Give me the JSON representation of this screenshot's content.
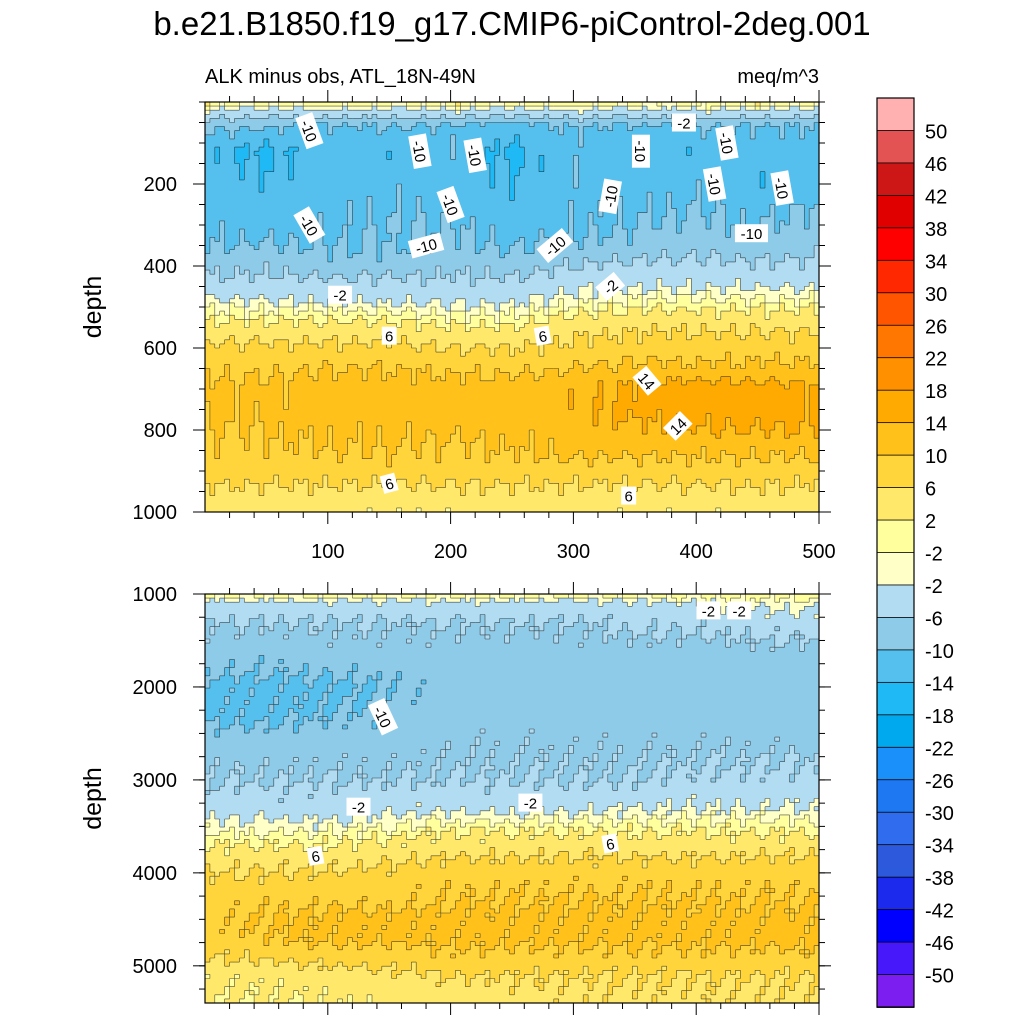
{
  "title": "b.e21.B1850.f19_g17.CMIP6-piControl-2deg.001",
  "chart_data": [
    {
      "type": "heatmap",
      "panel": "upper",
      "subtitle_left": "ALK minus obs, ATL_18N-49N",
      "subtitle_right": "meq/m^3",
      "xlabel": "",
      "ylabel": "depth",
      "xlim": [
        0,
        500
      ],
      "ylim": [
        1000,
        0
      ],
      "xticks": [
        100,
        200,
        300,
        400,
        500
      ],
      "yticks": [
        200,
        400,
        600,
        800,
        1000
      ],
      "x": [
        0,
        50,
        100,
        150,
        200,
        250,
        300,
        350,
        400,
        450,
        500
      ],
      "depth": [
        0,
        20,
        60,
        120,
        200,
        300,
        360,
        400,
        440,
        480,
        520,
        560,
        600,
        650,
        700,
        750,
        800,
        850,
        900,
        950,
        1000
      ],
      "z": [
        [
          2,
          1,
          2,
          1,
          2,
          1,
          2,
          1,
          1,
          2,
          1
        ],
        [
          -2,
          -3,
          -2,
          -3,
          -2,
          -3,
          -2,
          -3,
          -2,
          -2,
          -3
        ],
        [
          -9,
          -10,
          -11,
          -10,
          -11,
          -12,
          -10,
          -11,
          -10,
          -11,
          -10
        ],
        [
          -13,
          -15,
          -12,
          -13,
          -11,
          -15,
          -11,
          -12,
          -13,
          -12,
          -12
        ],
        [
          -12,
          -13,
          -12,
          -11,
          -12,
          -14,
          -11,
          -12,
          -11,
          -13,
          -11
        ],
        [
          -11,
          -12,
          -11,
          -10,
          -10,
          -12,
          -11,
          -10,
          -9,
          -10,
          -9
        ],
        [
          -10,
          -9,
          -10,
          -10,
          -9,
          -10,
          -9,
          -8,
          -7,
          -8,
          -7
        ],
        [
          -7,
          -7,
          -8,
          -8,
          -7,
          -8,
          -6,
          -5,
          -5,
          -5,
          -5
        ],
        [
          -5,
          -5,
          -5,
          -5,
          -5,
          -5,
          -3,
          -3,
          -3,
          -3,
          -3
        ],
        [
          -2,
          -2,
          -3,
          -3,
          -3,
          -3,
          -1,
          0,
          0,
          0,
          0
        ],
        [
          1,
          1,
          1,
          1,
          0,
          0,
          2,
          3,
          3,
          3,
          3
        ],
        [
          4,
          4,
          4,
          4,
          3,
          3,
          5,
          6,
          6,
          6,
          6
        ],
        [
          7,
          7,
          7,
          7,
          6,
          6,
          7,
          8,
          8,
          8,
          8
        ],
        [
          9,
          9,
          10,
          10,
          9,
          9,
          10,
          11,
          11,
          11,
          11
        ],
        [
          11,
          11,
          12,
          12,
          12,
          12,
          13,
          15,
          16,
          16,
          15
        ],
        [
          11,
          11,
          12,
          12,
          12,
          12,
          13,
          15,
          16,
          16,
          15
        ],
        [
          10,
          10,
          11,
          11,
          11,
          11,
          12,
          13,
          14,
          14,
          14
        ],
        [
          9,
          9,
          10,
          10,
          9,
          10,
          11,
          11,
          11,
          11,
          11
        ],
        [
          8,
          8,
          8,
          8,
          8,
          8,
          8,
          8,
          8,
          8,
          8
        ],
        [
          5,
          5,
          5,
          5,
          5,
          5,
          5,
          5,
          5,
          5,
          5
        ],
        [
          3,
          3,
          3,
          3,
          3,
          3,
          3,
          3,
          3,
          3,
          3
        ]
      ],
      "contour_interval": 4,
      "contour_labels": [
        "-10",
        "-10",
        "-10",
        "-10",
        "-10",
        "-10",
        "-10",
        "-10",
        "-10",
        "-10",
        "-10",
        "-10",
        "-10",
        "-2",
        "-2",
        "-2",
        "6",
        "6",
        "6",
        "6",
        "14",
        "14"
      ]
    },
    {
      "type": "heatmap",
      "panel": "lower",
      "xlabel": "",
      "ylabel": "depth",
      "xlim": [
        0,
        500
      ],
      "ylim": [
        5400,
        1000
      ],
      "yticks": [
        1000,
        2000,
        3000,
        4000,
        5000
      ],
      "x": [
        0,
        50,
        100,
        150,
        200,
        250,
        300,
        350,
        400,
        450,
        500
      ],
      "depth": [
        1000,
        1100,
        1300,
        1700,
        2000,
        2300,
        2600,
        3000,
        3300,
        3500,
        3700,
        3900,
        4100,
        4300,
        4500,
        4700,
        4900,
        5100,
        5400
      ],
      "z": [
        [
          1,
          1,
          1,
          1,
          1,
          1,
          1,
          1,
          1,
          1,
          1
        ],
        [
          -3,
          -3,
          -3,
          -3,
          -3,
          -3,
          -3,
          -3,
          -2,
          -1,
          -1
        ],
        [
          -6,
          -6,
          -6,
          -6,
          -6,
          -6,
          -6,
          -5,
          -5,
          -4,
          -4
        ],
        [
          -8,
          -9,
          -8,
          -8,
          -8,
          -8,
          -8,
          -8,
          -8,
          -8,
          -8
        ],
        [
          -11,
          -11,
          -11,
          -10,
          -8,
          -8,
          -8,
          -8,
          -8,
          -8,
          -8
        ],
        [
          -11,
          -11,
          -10,
          -9,
          -8,
          -8,
          -8,
          -8,
          -8,
          -8,
          -8
        ],
        [
          -8,
          -8,
          -8,
          -8,
          -7,
          -7,
          -7,
          -7,
          -7,
          -7,
          -7
        ],
        [
          -6,
          -6,
          -6,
          -6,
          -6,
          -6,
          -6,
          -6,
          -5,
          -5,
          -5
        ],
        [
          -4,
          -4,
          -4,
          -3,
          -3,
          -3,
          -3,
          -2,
          -2,
          -2,
          -2
        ],
        [
          -1,
          -1,
          -1,
          0,
          1,
          1,
          1,
          1,
          1,
          1,
          1
        ],
        [
          2,
          2,
          2,
          3,
          4,
          4,
          4,
          4,
          4,
          4,
          4
        ],
        [
          5,
          5,
          5,
          6,
          7,
          7,
          7,
          7,
          7,
          7,
          7
        ],
        [
          7,
          7,
          8,
          8,
          9,
          9,
          9,
          9,
          9,
          9,
          9
        ],
        [
          8,
          9,
          9,
          9,
          10,
          10,
          10,
          10,
          10,
          10,
          10
        ],
        [
          9,
          10,
          11,
          11,
          11,
          11,
          11,
          11,
          11,
          11,
          11
        ],
        [
          8,
          10,
          11,
          11,
          11,
          11,
          11,
          11,
          11,
          11,
          11
        ],
        [
          6,
          7,
          8,
          8,
          9,
          9,
          9,
          9,
          9,
          9,
          9
        ],
        [
          3,
          3,
          4,
          5,
          6,
          6,
          6,
          6,
          6,
          6,
          6
        ],
        [
          2,
          2,
          2,
          3,
          3,
          4,
          5,
          5,
          5,
          5,
          5
        ]
      ],
      "contour_interval": 4,
      "contour_labels": [
        "-2",
        "-2",
        "-10",
        "-2",
        "-2",
        "6",
        "6"
      ]
    }
  ],
  "colorbar": {
    "labels": [
      "50",
      "46",
      "42",
      "38",
      "34",
      "30",
      "26",
      "22",
      "18",
      "14",
      "10",
      "6",
      "2",
      "-2",
      "-2",
      "-6",
      "-10",
      "-14",
      "-18",
      "-22",
      "-26",
      "-30",
      "-34",
      "-38",
      "-42",
      "-46",
      "-50"
    ],
    "colors": [
      "#ffb0b0",
      "#e35353",
      "#cd1616",
      "#e00000",
      "#ff0000",
      "#ff2800",
      "#ff5500",
      "#ff7700",
      "#ff9000",
      "#ffaa00",
      "#ffc11a",
      "#ffd53b",
      "#ffe86a",
      "#ffff9e",
      "#ffffc8",
      "#b2dcf2",
      "#8ecbe9",
      "#55bfed",
      "#1fbaf5",
      "#00a9ee",
      "#1a90fa",
      "#1e78f2",
      "#2f6cee",
      "#2d5add",
      "#1c2aed",
      "#0000ff",
      "#4618fa",
      "#7c1ef0"
    ]
  }
}
